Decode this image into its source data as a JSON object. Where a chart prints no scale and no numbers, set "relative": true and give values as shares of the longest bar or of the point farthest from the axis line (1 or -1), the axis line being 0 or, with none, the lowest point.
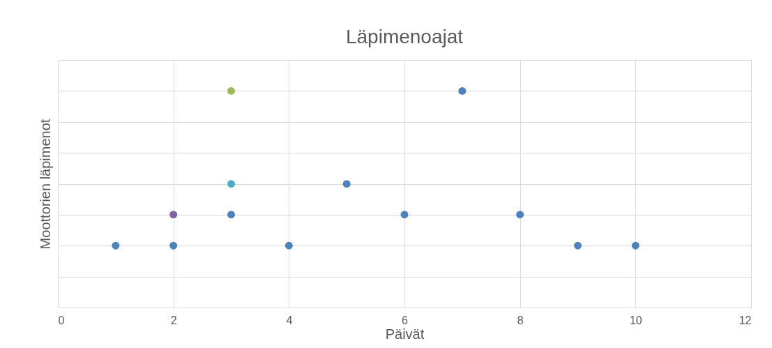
{
  "chart_data": {
    "type": "scatter",
    "title": "Läpimenoajat",
    "xlabel": "Päivät",
    "ylabel": "Moottorien läpimenot",
    "x": [
      1,
      2,
      2,
      3,
      3,
      3,
      4,
      5,
      6,
      7,
      8,
      9,
      10
    ],
    "values": [
      0.286,
      0.286,
      0.429,
      1,
      0.571,
      0.429,
      0.286,
      0.571,
      0.429,
      1,
      0.429,
      0.286,
      0.286
    ],
    "colors": [
      "#4f81bd",
      "#4f81bd",
      "#8064a2",
      "#9bbb59",
      "#4bacc6",
      "#4f81bd",
      "#4f81bd",
      "#4f81bd",
      "#4f81bd",
      "#4f81bd",
      "#4f81bd",
      "#4f81bd",
      "#4f81bd"
    ],
    "relative": true,
    "xlim": [
      0,
      12
    ],
    "xticks": [
      0,
      2,
      4,
      6,
      8,
      10,
      12
    ],
    "grid": true,
    "marker": "circle",
    "legend": false
  }
}
